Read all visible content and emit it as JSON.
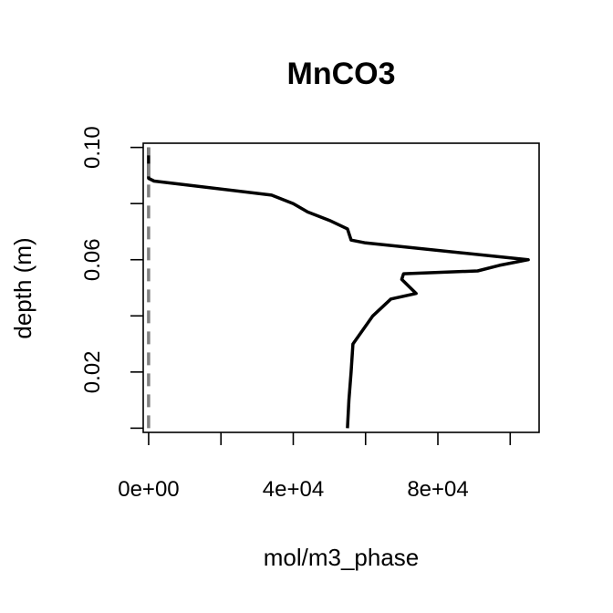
{
  "chart_data": {
    "type": "line",
    "title": "MnCO3",
    "xlabel": "mol/m3_phase",
    "ylabel": "depth (m)",
    "xlim": [
      -1500,
      108000
    ],
    "ylim": [
      0.1015,
      -0.0015
    ],
    "y_reversed": true,
    "xticks": [
      0,
      20000,
      40000,
      60000,
      80000,
      100000
    ],
    "xtick_labels": [
      "0e+00",
      "",
      "4e+04",
      "",
      "8e+04",
      ""
    ],
    "yticks": [
      0.0,
      0.02,
      0.04,
      0.06,
      0.08,
      0.1
    ],
    "ytick_labels": [
      "",
      "0.02",
      "",
      "0.06",
      "",
      "0.10"
    ],
    "grid": false,
    "series": [
      {
        "style": "solid",
        "color": "#000000",
        "points": [
          [
            55000,
            0.0
          ],
          [
            55400,
            0.01
          ],
          [
            56000,
            0.02
          ],
          [
            56500,
            0.03
          ],
          [
            62000,
            0.04
          ],
          [
            67000,
            0.046
          ],
          [
            74000,
            0.048
          ],
          [
            70000,
            0.053
          ],
          [
            70500,
            0.055
          ],
          [
            91000,
            0.056
          ],
          [
            97000,
            0.058
          ],
          [
            105000,
            0.06
          ],
          [
            60000,
            0.066
          ],
          [
            56000,
            0.067
          ],
          [
            55000,
            0.071
          ],
          [
            50000,
            0.074
          ],
          [
            44000,
            0.077
          ],
          [
            40000,
            0.08
          ],
          [
            34000,
            0.083
          ],
          [
            1500,
            0.088
          ],
          [
            0,
            0.089
          ],
          [
            0,
            0.1
          ]
        ]
      },
      {
        "style": "dashed",
        "color": "#808080",
        "points": [
          [
            0,
            0.0
          ],
          [
            0,
            0.1
          ]
        ]
      }
    ]
  }
}
